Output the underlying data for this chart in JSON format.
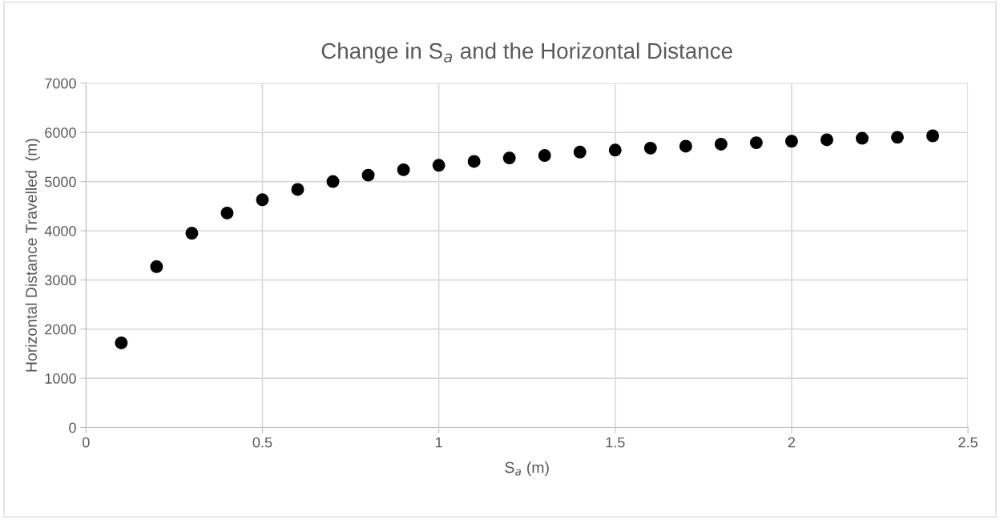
{
  "chart_data": {
    "type": "scatter",
    "title": "Change in S$_{a}$ and the Horizontal Distance",
    "xlabel": "S$_{a}$ (m)",
    "ylabel": "Horizontal Distance Travelled  (m)",
    "x": [
      0.1,
      0.2,
      0.3,
      0.4,
      0.5,
      0.6,
      0.7,
      0.8,
      0.9,
      1.0,
      1.1,
      1.2,
      1.3,
      1.4,
      1.5,
      1.6,
      1.7,
      1.8,
      1.9,
      2.0,
      2.1,
      2.2,
      2.3,
      2.4
    ],
    "series": [
      {
        "color": "#000000",
        "values": [
          1720,
          3270,
          3950,
          4360,
          4630,
          4840,
          5000,
          5130,
          5240,
          5330,
          5410,
          5480,
          5530,
          5600,
          5640,
          5680,
          5720,
          5760,
          5790,
          5820,
          5850,
          5880,
          5900,
          5930
        ]
      }
    ],
    "xlim": [
      0,
      2.5
    ],
    "xticks": [
      0,
      0.5,
      1,
      1.5,
      2,
      2.5
    ],
    "ylim": [
      0,
      7000
    ],
    "yticks": [
      0,
      1000,
      2000,
      3000,
      4000,
      5000,
      6000,
      7000
    ],
    "grid": true,
    "marker": "circle"
  }
}
